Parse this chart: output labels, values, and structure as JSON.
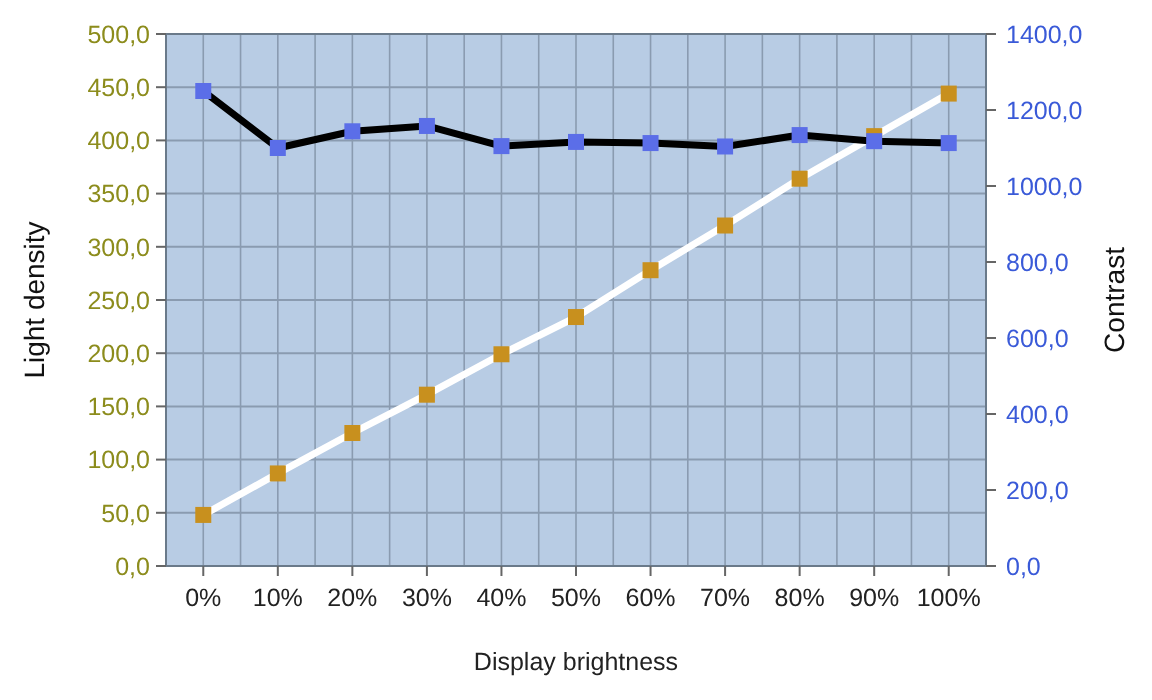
{
  "chart_data": {
    "type": "line",
    "xlabel": "Display brightness",
    "ylabel": "Light density",
    "y2label": "Contrast",
    "categories": [
      "0%",
      "10%",
      "20%",
      "30%",
      "40%",
      "50%",
      "60%",
      "70%",
      "80%",
      "90%",
      "100%"
    ],
    "series": [
      {
        "color": "#c8901e",
        "values": [
          48,
          87,
          125,
          161,
          199,
          234,
          278,
          320,
          364,
          404,
          444
        ]
      },
      {
        "color": "#5b6ee8",
        "axis": "y2",
        "values": [
          1250,
          1100,
          1144,
          1158,
          1105,
          1116,
          1113,
          1104,
          1134,
          1118,
          1113
        ]
      }
    ],
    "ylim": [
      0,
      500
    ],
    "yticks": [
      {
        "value": 0,
        "label": "0,0"
      },
      {
        "value": 50,
        "label": "50,0"
      },
      {
        "value": 100,
        "label": "100,0"
      },
      {
        "value": 150,
        "label": "150,0"
      },
      {
        "value": 200,
        "label": "200,0"
      },
      {
        "value": 250,
        "label": "250,0"
      },
      {
        "value": 300,
        "label": "300,0"
      },
      {
        "value": 350,
        "label": "350,0"
      },
      {
        "value": 400,
        "label": "400,0"
      },
      {
        "value": 450,
        "label": "450,0"
      },
      {
        "value": 500,
        "label": "500,0"
      }
    ],
    "y2lim": [
      0,
      1400
    ],
    "y2ticks": [
      {
        "value": 0,
        "label": "0,0"
      },
      {
        "value": 200,
        "label": "200,0"
      },
      {
        "value": 400,
        "label": "400,0"
      },
      {
        "value": 600,
        "label": "600,0"
      },
      {
        "value": 800,
        "label": "800,0"
      },
      {
        "value": 1000,
        "label": "1000,0"
      },
      {
        "value": 1200,
        "label": "1200,0"
      },
      {
        "value": 1400,
        "label": "1400,0"
      }
    ],
    "grid": true,
    "marker": "square",
    "line_style": "solid"
  }
}
